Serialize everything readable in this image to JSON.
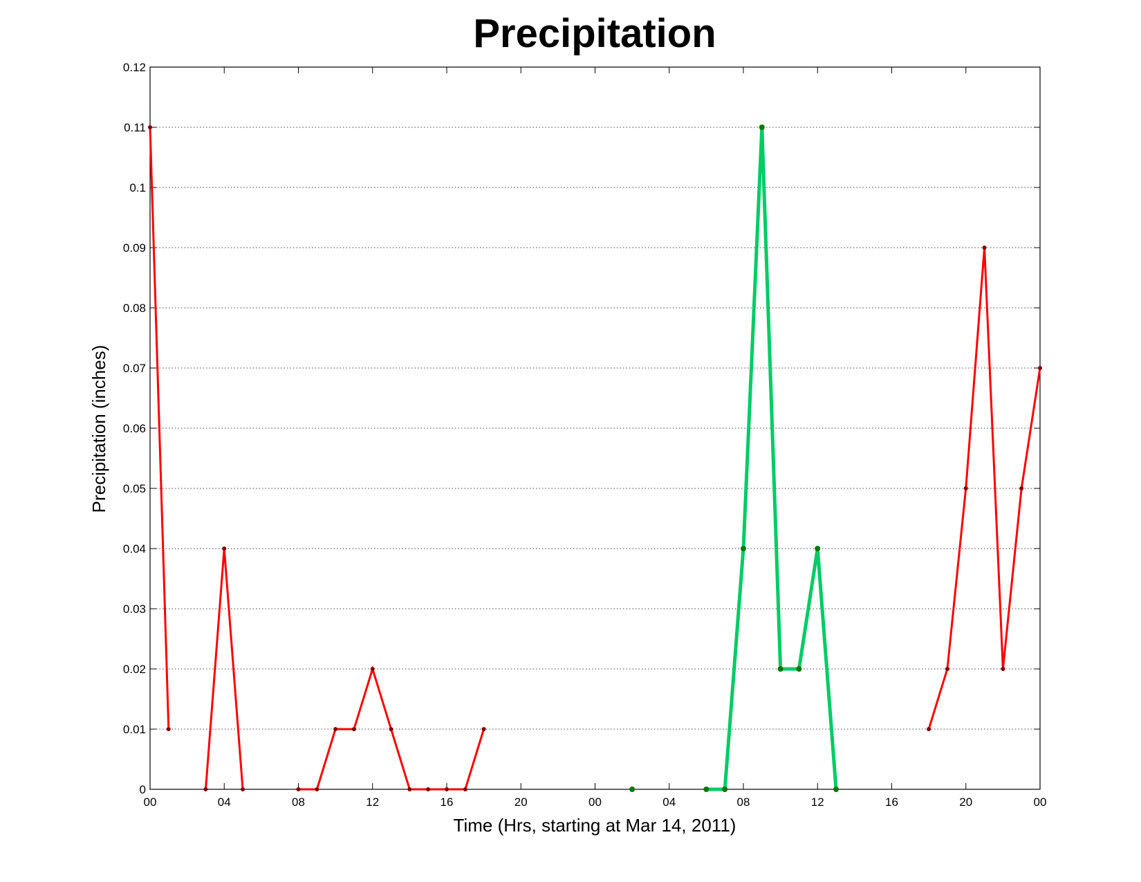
{
  "chart_data": {
    "type": "line",
    "title": "Precipitation",
    "xlabel": "Time (Hrs, starting at Mar 14, 2011)",
    "ylabel": "Precipitation (inches)",
    "xlim": [
      0,
      48
    ],
    "ylim": [
      0,
      0.12
    ],
    "x_tick_values": [
      0,
      4,
      8,
      12,
      16,
      20,
      24,
      28,
      32,
      36,
      40,
      44,
      48
    ],
    "x_tick_labels": [
      "00",
      "04",
      "08",
      "12",
      "16",
      "20",
      "00",
      "04",
      "08",
      "12",
      "16",
      "20",
      "00"
    ],
    "y_tick_values": [
      0,
      0.01,
      0.02,
      0.03,
      0.04,
      0.05,
      0.06,
      0.07,
      0.08,
      0.09,
      0.1,
      0.11,
      0.12
    ],
    "y_tick_labels": [
      "0",
      "0.01",
      "0.02",
      "0.03",
      "0.04",
      "0.05",
      "0.06",
      "0.07",
      "0.08",
      "0.09",
      "0.1",
      "0.11",
      "0.12"
    ],
    "grid": true,
    "series": [
      {
        "color": "#ff0000",
        "marker_color": "#800000",
        "segments": [
          [
            [
              0,
              0.11
            ],
            [
              1,
              0.01
            ]
          ],
          [
            [
              3,
              0
            ],
            [
              4,
              0.04
            ],
            [
              5,
              0
            ]
          ],
          [
            [
              8,
              0
            ],
            [
              9,
              0
            ],
            [
              10,
              0.01
            ],
            [
              11,
              0.01
            ],
            [
              12,
              0.02
            ],
            [
              13,
              0.01
            ],
            [
              14,
              0
            ],
            [
              15,
              0
            ],
            [
              16,
              0
            ],
            [
              17,
              0
            ],
            [
              18,
              0.01
            ]
          ],
          [
            [
              42,
              0.01
            ],
            [
              43,
              0.02
            ],
            [
              44,
              0.05
            ],
            [
              45,
              0.09
            ],
            [
              46,
              0.02
            ],
            [
              47,
              0.05
            ],
            [
              48,
              0.07
            ]
          ]
        ]
      },
      {
        "color": "#00cc66",
        "marker_color": "#007a00",
        "segments": [
          [
            [
              26,
              0
            ]
          ],
          [
            [
              30,
              0
            ],
            [
              31,
              0
            ],
            [
              32,
              0.04
            ],
            [
              33,
              0.11
            ],
            [
              34,
              0.02
            ],
            [
              35,
              0.02
            ],
            [
              36,
              0.04
            ],
            [
              37,
              0
            ]
          ]
        ]
      }
    ]
  }
}
